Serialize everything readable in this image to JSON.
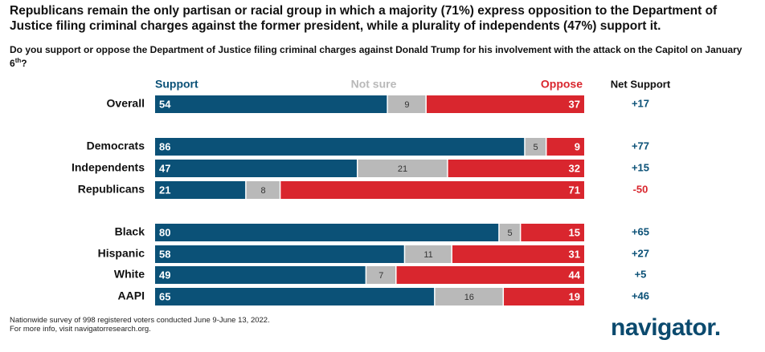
{
  "chart_data": {
    "type": "stacked-bar-100",
    "title": "Republicans remain the only partisan or racial group in which a majority (71%) express opposition to the Department of Justice filing criminal charges against the former president, while a plurality of independents (47%) support it.",
    "question": "Do you support or oppose the Department of Justice filing criminal charges against Donald Trump for his involvement with the attack on the Capitol on January 6",
    "question_sup": "th",
    "question_end": "?",
    "categories": [
      "Overall",
      "Democrats",
      "Independents",
      "Republicans",
      "Black",
      "Hispanic",
      "White",
      "AAPI"
    ],
    "series": [
      {
        "name": "Support",
        "color": "#0b5177",
        "values": [
          54,
          86,
          47,
          21,
          80,
          58,
          49,
          65
        ]
      },
      {
        "name": "Not sure",
        "color": "#b9b9b9",
        "values": [
          9,
          5,
          21,
          8,
          5,
          11,
          7,
          16
        ]
      },
      {
        "name": "Oppose",
        "color": "#d9262e",
        "values": [
          37,
          9,
          32,
          71,
          15,
          31,
          44,
          19
        ]
      }
    ],
    "xlim": [
      0,
      100
    ],
    "net_support": {
      "name": "Net Support",
      "values": [
        17,
        77,
        15,
        -50,
        65,
        27,
        5,
        46
      ],
      "value_labels": [
        "+17",
        "+77",
        "+15",
        "-50",
        "+65",
        "+27",
        "+5",
        "+46"
      ]
    },
    "note": [
      "Nationwide survey of 998 registered voters conducted June 9-June 13, 2022.",
      "For more info, visit navigatorresearch.org."
    ],
    "brand": "navigator."
  }
}
